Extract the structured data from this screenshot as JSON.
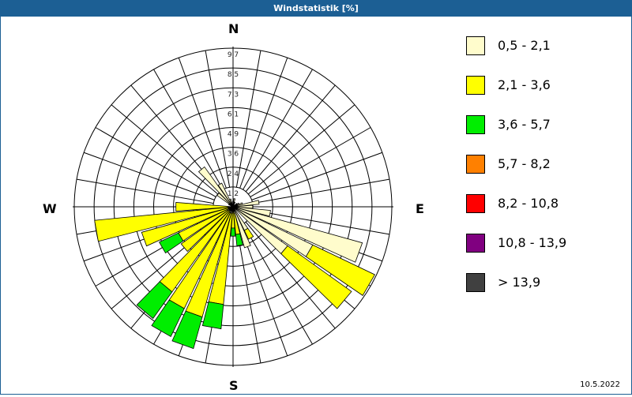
{
  "window": {
    "title": "Windstatistik [%]"
  },
  "compass": {
    "n": "N",
    "e": "E",
    "s": "S",
    "w": "W"
  },
  "footer": {
    "date": "10.5.2022"
  },
  "legend": [
    {
      "label": "0,5 - 2,1",
      "color": "#fffccc"
    },
    {
      "label": "2,1 - 3,6",
      "color": "#ffff00"
    },
    {
      "label": "3,6 - 5,7",
      "color": "#00ee00"
    },
    {
      "label": "5,7 - 8,2",
      "color": "#ff8000"
    },
    {
      "label": "8,2 - 10,8",
      "color": "#ff0000"
    },
    {
      "label": "10,8 - 13,9",
      "color": "#800080"
    },
    {
      "label": " > 13,9",
      "color": "#404040"
    }
  ],
  "chart_data": {
    "type": "wind-rose",
    "title": "Windstatistik [%]",
    "radial_ticks": [
      "1,2",
      "2,4",
      "3,6",
      "4,9",
      "6,1",
      "7,3",
      "8,5",
      "9,7"
    ],
    "radial_max": 9.7,
    "sector_width_deg": 10,
    "speed_classes": [
      "0,5 - 2,1",
      "2,1 - 3,6",
      "3,6 - 5,7",
      "5,7 - 8,2",
      "8,2 - 10,8",
      "10,8 - 13,9",
      "> 13,9"
    ],
    "sectors": [
      {
        "dir": 0,
        "segments": [
          0.3
        ]
      },
      {
        "dir": 10,
        "segments": [
          0.5
        ]
      },
      {
        "dir": 20,
        "segments": [
          0.3
        ]
      },
      {
        "dir": 50,
        "segments": [
          0.3
        ]
      },
      {
        "dir": 60,
        "segments": [
          0.4
        ]
      },
      {
        "dir": 70,
        "segments": [
          0.6
        ]
      },
      {
        "dir": 80,
        "segments": [
          1.6
        ]
      },
      {
        "dir": 90,
        "segments": [
          1.2
        ]
      },
      {
        "dir": 100,
        "segments": [
          2.3
        ]
      },
      {
        "dir": 110,
        "segments": [
          8.2
        ]
      },
      {
        "dir": 120,
        "segments": [
          5.4,
          4.2
        ]
      },
      {
        "dir": 130,
        "segments": [
          4.1,
          4.8
        ]
      },
      {
        "dir": 150,
        "segments": [
          1.6,
          0.6
        ]
      },
      {
        "dir": 160,
        "segments": [
          2.6
        ]
      },
      {
        "dir": 170,
        "segments": [
          0.4,
          1.3,
          0.7
        ]
      },
      {
        "dir": 180,
        "segments": [
          0.3,
          1.0,
          0.5
        ]
      },
      {
        "dir": 190,
        "segments": [
          0.4,
          5.6,
          1.5
        ]
      },
      {
        "dir": 200,
        "segments": [
          0.4,
          6.6,
          2.0
        ]
      },
      {
        "dir": 210,
        "segments": [
          0.4,
          6.5,
          1.9
        ]
      },
      {
        "dir": 220,
        "segments": [
          0.3,
          6.1,
          2.0
        ]
      },
      {
        "dir": 230,
        "segments": [
          0.3,
          3.6
        ]
      },
      {
        "dir": 240,
        "segments": [
          0.4,
          3.3,
          1.3
        ]
      },
      {
        "dir": 250,
        "segments": [
          0.3,
          5.5
        ]
      },
      {
        "dir": 260,
        "segments": [
          0.3,
          8.2
        ]
      },
      {
        "dir": 270,
        "segments": [
          0.3,
          3.2
        ]
      },
      {
        "dir": 300,
        "segments": [
          0.3
        ]
      },
      {
        "dir": 310,
        "segments": [
          1.2
        ]
      },
      {
        "dir": 320,
        "segments": [
          3.0
        ]
      },
      {
        "dir": 330,
        "segments": [
          1.6
        ]
      },
      {
        "dir": 340,
        "segments": [
          0.5
        ]
      }
    ]
  }
}
